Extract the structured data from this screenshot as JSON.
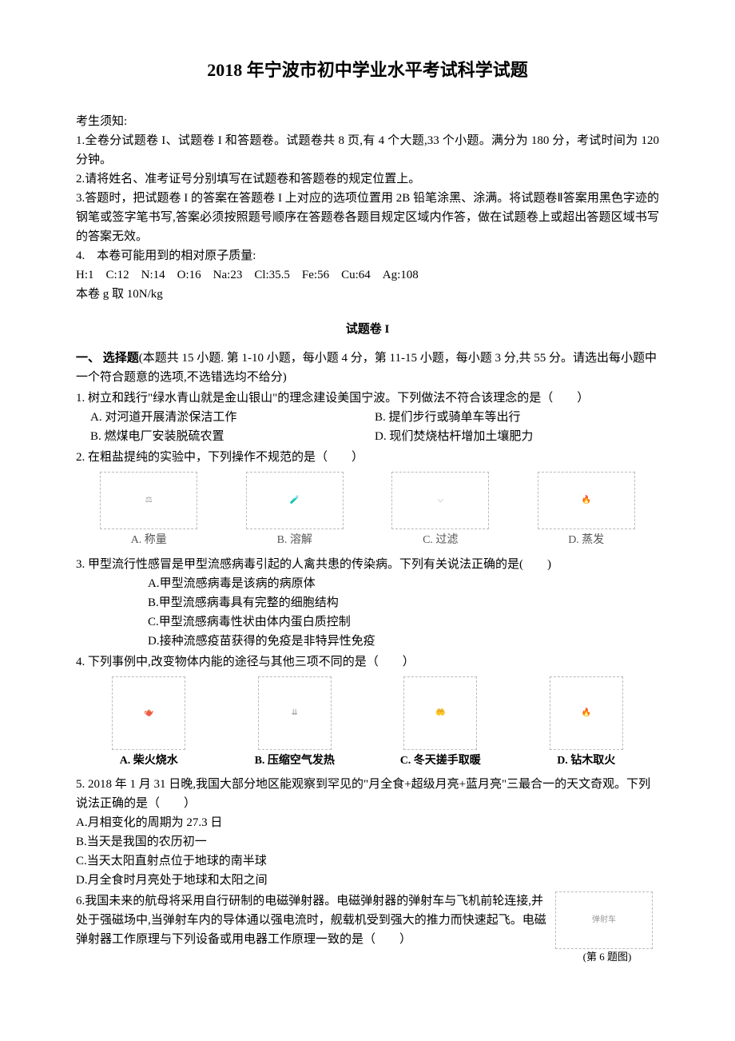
{
  "title": "2018 年宁波市初中学业水平考试科学试题",
  "notice_header": "考生须知:",
  "notices": {
    "n1": "1.全卷分试题卷 I、试题卷 I 和答题卷。试题卷共 8 页,有 4 个大题,33 个小题。满分为 180 分，考试时间为 120 分钟。",
    "n2": "2.请将姓名、准考证号分别填写在试题卷和答题卷的规定位置上。",
    "n3": "3.答题时，把试题卷 I 的答案在答题卷 I 上对应的选项位置用 2B 铅笔涂黑、涂满。将试题卷Ⅱ答案用黑色字迹的钢笔或签字笔书写,答案必须按照题号顺序在答题卷各题目规定区域内作答，做在试题卷上或超出答题区域书写的答案无效。",
    "n4_label": "4.　本卷可能用到的相对原子质量:",
    "n4_values": "H:1　C:12　N:14　O:16　Na:23　Cl:35.5　Fe:56　Cu:64　Ag:108",
    "n4_g": "本卷 g 取 10N/kg"
  },
  "section1_header": "试题卷 I",
  "part1": {
    "label": "一、 选择题",
    "desc": "(本题共 15 小题. 第 1-10 小题，每小题 4 分，第 11-15 小题，每小题 3 分,共 55 分。请选出每小题中一个符合题意的选项,不选错选均不给分)"
  },
  "q1": {
    "num": "1.",
    "text": "树立和践行\"绿水青山就是金山银山\"的理念建设美国宁波。下列做法不符合该理念的是（　　）",
    "optA": "A. 对河道开展清淤保洁工作",
    "optB1": "B. 提们步行或骑单车等出行",
    "optB2": "B. 燃煤电厂安装脱硫农置",
    "optD": "D. 现们焚烧枯杆增加土壤肥力"
  },
  "q2": {
    "num": "2.",
    "text": "在粗盐提纯的实验中，下列操作不规范的是（　　）",
    "captions": {
      "a": "A. 称量",
      "b": "B. 溶解",
      "c": "C. 过滤",
      "d": "D. 蒸发"
    }
  },
  "q3": {
    "num": "3.",
    "text": "甲型流行性感冒是甲型流感病毒引起的人禽共患的传染病。下列有关说法正确的是(　　)",
    "optA": "A.甲型流感病毒是该病的病原体",
    "optB": "B.甲型流感病毒具有完整的细胞结构",
    "optC": "C.甲型流感病毒性状由体内蛋白质控制",
    "optD": "D.接种流感疫苗获得的免疫是非特异性免疫"
  },
  "q4": {
    "num": "4.",
    "text": "下列事例中,改变物体内能的途径与其他三项不同的是（　　）",
    "captions": {
      "a": "A. 柴火烧水",
      "b": "B. 压缩空气发热",
      "c": "C. 冬天搓手取暖",
      "d": "D. 钻木取火"
    }
  },
  "q5": {
    "num": "5.",
    "text": " 2018 年 1 月 31 日晚,我国大部分地区能观察到罕见的\"月全食+超级月亮+蓝月亮\"三最合一的天文奇观。下列说法正确的是（　　）",
    "optA": "A.月相变化的周期为 27.3 日",
    "optB": "B.当天是我国的农历初一",
    "optC": "C.当天太阳直射点位于地球的南半球",
    "optD": "D.月全食时月亮处于地球和太阳之间"
  },
  "q6": {
    "num": "6.",
    "text": "我国未来的航母将采用自行研制的电磁弹射器。电磁弹射器的弹射车与飞机前轮连接,并处于强磁场中,当弹射车内的导体通以强电流时，舰载机受到强大的推力而快速起飞。电磁弹射器工作原理与下列设备或用电器工作原理一致的是（　　）",
    "fig_label": "弹射车",
    "fig_caption": "(第 6 题图)"
  }
}
